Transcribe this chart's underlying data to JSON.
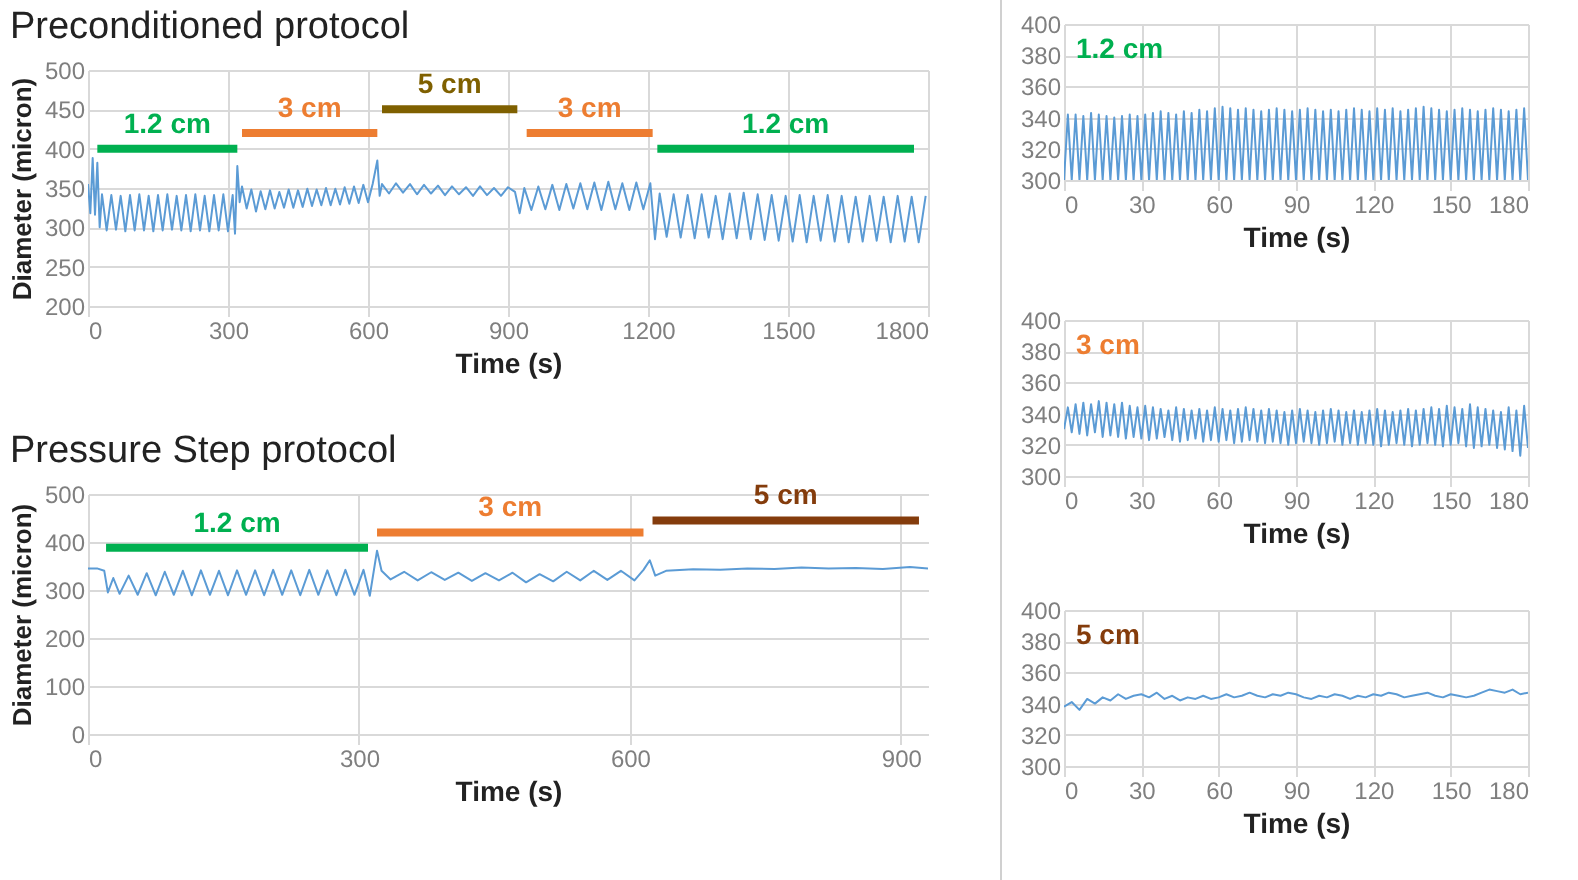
{
  "chart_data": [
    {
      "type": "line",
      "title": "Preconditioned protocol",
      "xlabel": "Time (s)",
      "ylabel": "Diameter (micron)",
      "xlim": [
        0,
        1800
      ],
      "xticks": [
        0,
        300,
        600,
        900,
        1200,
        1500,
        1800
      ],
      "ylim": [
        200,
        500
      ],
      "yticks": [
        200,
        250,
        300,
        350,
        400,
        450,
        500
      ],
      "grid": true,
      "series": [
        {
          "color": "#5b9bd5",
          "x": [
            0,
            5,
            10,
            15,
            20,
            25,
            30,
            40,
            50,
            60,
            70,
            80,
            90,
            100,
            110,
            120,
            130,
            140,
            150,
            160,
            170,
            180,
            190,
            200,
            210,
            220,
            230,
            240,
            250,
            260,
            270,
            280,
            290,
            300,
            310,
            315,
            320,
            325,
            330,
            340,
            350,
            360,
            370,
            380,
            390,
            400,
            410,
            420,
            430,
            440,
            450,
            460,
            470,
            480,
            490,
            500,
            510,
            520,
            530,
            540,
            550,
            560,
            570,
            580,
            590,
            600,
            610,
            620,
            625,
            630,
            645,
            660,
            675,
            690,
            705,
            720,
            735,
            750,
            765,
            780,
            795,
            810,
            825,
            840,
            855,
            870,
            885,
            900,
            915,
            925,
            935,
            950,
            965,
            980,
            995,
            1010,
            1025,
            1040,
            1055,
            1070,
            1085,
            1100,
            1115,
            1130,
            1145,
            1160,
            1175,
            1190,
            1205,
            1215,
            1225,
            1240,
            1255,
            1270,
            1285,
            1300,
            1315,
            1330,
            1345,
            1360,
            1375,
            1390,
            1405,
            1420,
            1435,
            1450,
            1465,
            1480,
            1495,
            1510,
            1525,
            1540,
            1555,
            1570,
            1585,
            1600,
            1615,
            1630,
            1645,
            1660,
            1675,
            1690,
            1705,
            1720,
            1735,
            1750,
            1765,
            1780,
            1795
          ],
          "values": [
            355,
            318,
            388,
            316,
            382,
            300,
            342,
            296,
            341,
            297,
            340,
            295,
            341,
            296,
            342,
            296,
            340,
            295,
            341,
            296,
            342,
            297,
            340,
            296,
            341,
            295,
            342,
            296,
            340,
            295,
            341,
            296,
            342,
            295,
            341,
            292,
            378,
            332,
            352,
            324,
            348,
            320,
            346,
            323,
            347,
            324,
            345,
            325,
            348,
            325,
            347,
            326,
            349,
            327,
            348,
            328,
            350,
            328,
            349,
            329,
            351,
            330,
            352,
            331,
            354,
            332,
            355,
            385,
            340,
            355,
            343,
            356,
            344,
            355,
            342,
            354,
            343,
            353,
            341,
            352,
            342,
            351,
            340,
            352,
            341,
            350,
            340,
            351,
            345,
            318,
            350,
            322,
            352,
            323,
            354,
            322,
            355,
            324,
            356,
            323,
            357,
            322,
            358,
            323,
            356,
            322,
            357,
            323,
            356,
            285,
            343,
            288,
            342,
            287,
            341,
            286,
            342,
            287,
            340,
            285,
            343,
            286,
            344,
            285,
            342,
            284,
            341,
            283,
            340,
            282,
            341,
            281,
            340,
            283,
            341,
            282,
            340,
            281,
            339,
            282,
            340,
            283,
            339,
            281,
            340,
            282,
            339,
            281,
            340
          ]
        },
        {
          "name": "1.2 cm",
          "color": "#00b050",
          "x": [
            20,
            320
          ],
          "values": [
            400,
            400
          ]
        },
        {
          "name": "3 cm",
          "color": "#ed7d31",
          "x": [
            330,
            620
          ],
          "values": [
            420,
            420
          ]
        },
        {
          "name": "5 cm",
          "color": "#7f6000",
          "x": [
            630,
            920
          ],
          "values": [
            450,
            450
          ]
        },
        {
          "name": "3 cm",
          "color": "#ed7d31",
          "x": [
            940,
            1210
          ],
          "values": [
            420,
            420
          ]
        },
        {
          "name": "1.2 cm",
          "color": "#00b050",
          "x": [
            1220,
            1770
          ],
          "values": [
            400,
            400
          ]
        }
      ]
    },
    {
      "type": "line",
      "title": "Pressure Step protocol",
      "xlabel": "Time (s)",
      "ylabel": "Diameter (micron)",
      "xlim": [
        0,
        930
      ],
      "xticks": [
        0,
        300,
        600,
        900
      ],
      "ylim": [
        0,
        500
      ],
      "yticks": [
        0,
        100,
        200,
        300,
        400,
        500
      ],
      "grid": true,
      "series": [
        {
          "color": "#5b9bd5",
          "x": [
            0,
            10,
            18,
            22,
            28,
            35,
            45,
            55,
            65,
            75,
            85,
            95,
            105,
            115,
            125,
            135,
            145,
            155,
            165,
            175,
            185,
            195,
            205,
            215,
            225,
            235,
            245,
            255,
            265,
            275,
            285,
            295,
            305,
            312,
            320,
            325,
            335,
            350,
            365,
            380,
            395,
            410,
            425,
            440,
            455,
            470,
            485,
            500,
            515,
            530,
            545,
            560,
            575,
            590,
            605,
            615,
            622,
            628,
            640,
            670,
            700,
            730,
            760,
            790,
            820,
            850,
            880,
            910,
            930
          ],
          "values": [
            345,
            345,
            340,
            295,
            325,
            292,
            330,
            290,
            335,
            289,
            338,
            290,
            340,
            289,
            341,
            290,
            340,
            289,
            341,
            290,
            341,
            289,
            342,
            290,
            341,
            289,
            342,
            290,
            341,
            289,
            342,
            290,
            342,
            288,
            382,
            340,
            322,
            338,
            320,
            337,
            321,
            336,
            319,
            335,
            320,
            336,
            316,
            333,
            318,
            338,
            320,
            340,
            321,
            340,
            320,
            342,
            362,
            330,
            340,
            343,
            342,
            345,
            344,
            347,
            345,
            346,
            344,
            348,
            345
          ]
        },
        {
          "name": "1.2 cm",
          "color": "#00b050",
          "x": [
            20,
            310
          ],
          "values": [
            388,
            388
          ]
        },
        {
          "name": "3 cm",
          "color": "#ed7d31",
          "x": [
            320,
            615
          ],
          "values": [
            420,
            420
          ]
        },
        {
          "name": "5 cm",
          "color": "#843c0c",
          "x": [
            625,
            920
          ],
          "values": [
            445,
            445
          ]
        }
      ]
    },
    {
      "type": "line",
      "xlabel": "Time (s)",
      "annotations": [
        "1.2 cm"
      ],
      "xlim": [
        0,
        180
      ],
      "xticks": [
        0,
        30,
        60,
        90,
        120,
        150,
        180
      ],
      "ylim": [
        300,
        400
      ],
      "yticks": [
        300,
        320,
        340,
        360,
        380,
        400
      ],
      "grid": true,
      "series": [
        {
          "color": "#5b9bd5",
          "x": [
            0,
            1.5,
            3,
            4.5,
            6,
            7.5,
            9,
            10.5,
            12,
            13.5,
            15,
            16.5,
            18,
            19.5,
            21,
            22.5,
            24,
            25.5,
            27,
            28.5,
            30,
            31.5,
            33,
            34.5,
            36,
            37.5,
            39,
            40.5,
            42,
            43.5,
            45,
            46.5,
            48,
            49.5,
            51,
            52.5,
            54,
            55.5,
            57,
            58.5,
            60,
            61.5,
            63,
            64.5,
            66,
            67.5,
            69,
            70.5,
            72,
            73.5,
            75,
            76.5,
            78,
            79.5,
            81,
            82.5,
            84,
            85.5,
            87,
            88.5,
            90,
            91.5,
            93,
            94.5,
            96,
            97.5,
            99,
            100.5,
            102,
            103.5,
            105,
            106.5,
            108,
            109.5,
            111,
            112.5,
            114,
            115.5,
            117,
            118.5,
            120,
            121.5,
            123,
            124.5,
            126,
            127.5,
            129,
            130.5,
            132,
            133.5,
            135,
            136.5,
            138,
            139.5,
            141,
            142.5,
            144,
            145.5,
            147,
            148.5,
            150,
            151.5,
            153,
            154.5,
            156,
            157.5,
            159,
            160.5,
            162,
            163.5,
            165,
            166.5,
            168,
            169.5,
            171,
            172.5,
            174,
            175.5,
            177,
            178.5,
            180
          ],
          "values": [
            300,
            342,
            300,
            342,
            300,
            341,
            300,
            343,
            300,
            342,
            300,
            341,
            300,
            340,
            300,
            341,
            300,
            342,
            300,
            341,
            300,
            342,
            300,
            343,
            300,
            344,
            300,
            343,
            300,
            342,
            300,
            344,
            300,
            343,
            300,
            345,
            300,
            344,
            300,
            346,
            300,
            347,
            300,
            346,
            300,
            345,
            300,
            346,
            300,
            345,
            300,
            344,
            300,
            345,
            300,
            346,
            300,
            345,
            300,
            344,
            300,
            345,
            300,
            346,
            300,
            345,
            300,
            344,
            300,
            345,
            300,
            344,
            300,
            345,
            300,
            346,
            300,
            345,
            300,
            344,
            300,
            346,
            300,
            345,
            300,
            346,
            300,
            344,
            300,
            345,
            300,
            346,
            300,
            347,
            300,
            346,
            300,
            345,
            300,
            344,
            300,
            345,
            300,
            346,
            300,
            345,
            300,
            344,
            300,
            345,
            300,
            346,
            300,
            345,
            300,
            344,
            300,
            345,
            300,
            346,
            300
          ]
        }
      ]
    },
    {
      "type": "line",
      "xlabel": "Time (s)",
      "annotations": [
        "3 cm"
      ],
      "xlim": [
        0,
        180
      ],
      "xticks": [
        0,
        30,
        60,
        90,
        120,
        150,
        180
      ],
      "ylim": [
        300,
        400
      ],
      "yticks": [
        300,
        320,
        340,
        360,
        380,
        400
      ],
      "grid": true,
      "series": [
        {
          "color": "#5b9bd5",
          "x": [
            0,
            1.5,
            3,
            4.5,
            6,
            7.5,
            9,
            10.5,
            12,
            13.5,
            15,
            16.5,
            18,
            19.5,
            21,
            22.5,
            24,
            25.5,
            27,
            28.5,
            30,
            31.5,
            33,
            34.5,
            36,
            37.5,
            39,
            40.5,
            42,
            43.5,
            45,
            46.5,
            48,
            49.5,
            51,
            52.5,
            54,
            55.5,
            57,
            58.5,
            60,
            61.5,
            63,
            64.5,
            66,
            67.5,
            69,
            70.5,
            72,
            73.5,
            75,
            76.5,
            78,
            79.5,
            81,
            82.5,
            84,
            85.5,
            87,
            88.5,
            90,
            91.5,
            93,
            94.5,
            96,
            97.5,
            99,
            100.5,
            102,
            103.5,
            105,
            106.5,
            108,
            109.5,
            111,
            112.5,
            114,
            115.5,
            117,
            118.5,
            120,
            121.5,
            123,
            124.5,
            126,
            127.5,
            129,
            130.5,
            132,
            133.5,
            135,
            136.5,
            138,
            139.5,
            141,
            142.5,
            144,
            145.5,
            147,
            148.5,
            150,
            151.5,
            153,
            154.5,
            156,
            157.5,
            159,
            160.5,
            162,
            163.5,
            165,
            166.5,
            168,
            169.5,
            171,
            172.5,
            174,
            175.5,
            177,
            178.5,
            180
          ],
          "values": [
            330,
            344,
            328,
            346,
            327,
            347,
            326,
            346,
            328,
            348,
            325,
            347,
            326,
            346,
            325,
            347,
            324,
            345,
            325,
            344,
            324,
            345,
            323,
            344,
            324,
            343,
            325,
            342,
            323,
            344,
            322,
            343,
            323,
            342,
            324,
            343,
            322,
            342,
            323,
            344,
            322,
            343,
            323,
            342,
            321,
            343,
            322,
            344,
            323,
            343,
            322,
            342,
            321,
            343,
            322,
            342,
            321,
            341,
            320,
            342,
            321,
            343,
            322,
            342,
            321,
            341,
            320,
            342,
            321,
            343,
            322,
            342,
            320,
            341,
            321,
            342,
            320,
            341,
            321,
            342,
            320,
            343,
            319,
            342,
            320,
            341,
            321,
            342,
            320,
            343,
            319,
            342,
            320,
            343,
            321,
            344,
            320,
            343,
            319,
            345,
            320,
            344,
            321,
            343,
            319,
            346,
            318,
            344,
            319,
            343,
            320,
            342,
            318,
            341,
            317,
            344,
            316,
            342,
            313,
            345,
            318
          ]
        }
      ]
    },
    {
      "type": "line",
      "xlabel": "Time (s)",
      "annotations": [
        "5 cm"
      ],
      "xlim": [
        0,
        180
      ],
      "xticks": [
        0,
        30,
        60,
        90,
        120,
        150,
        180
      ],
      "ylim": [
        300,
        400
      ],
      "yticks": [
        300,
        320,
        340,
        360,
        380,
        400
      ],
      "grid": true,
      "series": [
        {
          "color": "#5b9bd5",
          "x": [
            0,
            3,
            6,
            9,
            12,
            15,
            18,
            21,
            24,
            27,
            30,
            33,
            36,
            39,
            42,
            45,
            48,
            51,
            54,
            57,
            60,
            63,
            66,
            69,
            72,
            75,
            78,
            81,
            84,
            87,
            90,
            93,
            96,
            99,
            102,
            105,
            108,
            111,
            114,
            117,
            120,
            123,
            126,
            129,
            132,
            135,
            138,
            141,
            144,
            147,
            150,
            153,
            156,
            159,
            162,
            165,
            168,
            171,
            174,
            177,
            180
          ],
          "values": [
            338,
            341,
            336,
            343,
            340,
            344,
            342,
            346,
            343,
            345,
            346,
            344,
            347,
            343,
            345,
            342,
            344,
            343,
            345,
            343,
            344,
            346,
            344,
            345,
            347,
            345,
            344,
            346,
            345,
            347,
            346,
            344,
            343,
            345,
            344,
            346,
            345,
            343,
            345,
            344,
            346,
            345,
            347,
            346,
            344,
            345,
            346,
            347,
            345,
            344,
            346,
            345,
            344,
            345,
            347,
            349,
            348,
            347,
            349,
            346,
            347
          ]
        }
      ]
    }
  ]
}
